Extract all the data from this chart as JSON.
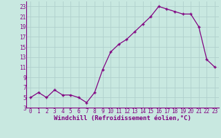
{
  "x": [
    0,
    1,
    2,
    3,
    4,
    5,
    6,
    7,
    8,
    9,
    10,
    11,
    12,
    13,
    14,
    15,
    16,
    17,
    18,
    19,
    20,
    21,
    22,
    23
  ],
  "y": [
    5,
    6,
    5,
    6.5,
    5.5,
    5.5,
    5,
    4,
    6,
    10.5,
    14,
    15.5,
    16.5,
    18,
    19.5,
    21,
    23,
    22.5,
    22,
    21.5,
    21.5,
    19,
    12.5,
    11
  ],
  "line_color": "#800080",
  "marker": "+",
  "marker_size": 3,
  "linewidth": 0.9,
  "xlabel": "Windchill (Refroidissement éolien,°C)",
  "xlabel_fontsize": 6.5,
  "xlim": [
    -0.5,
    23.5
  ],
  "ylim": [
    3,
    24
  ],
  "yticks": [
    3,
    5,
    7,
    9,
    11,
    13,
    15,
    17,
    19,
    21,
    23
  ],
  "xticks": [
    0,
    1,
    2,
    3,
    4,
    5,
    6,
    7,
    8,
    9,
    10,
    11,
    12,
    13,
    14,
    15,
    16,
    17,
    18,
    19,
    20,
    21,
    22,
    23
  ],
  "bg_color": "#c8e8e0",
  "grid_color": "#b0d0cc",
  "tick_label_color": "#800080",
  "tick_label_size": 5.5,
  "xlabel_color": "#800080",
  "spine_color": "#800080"
}
